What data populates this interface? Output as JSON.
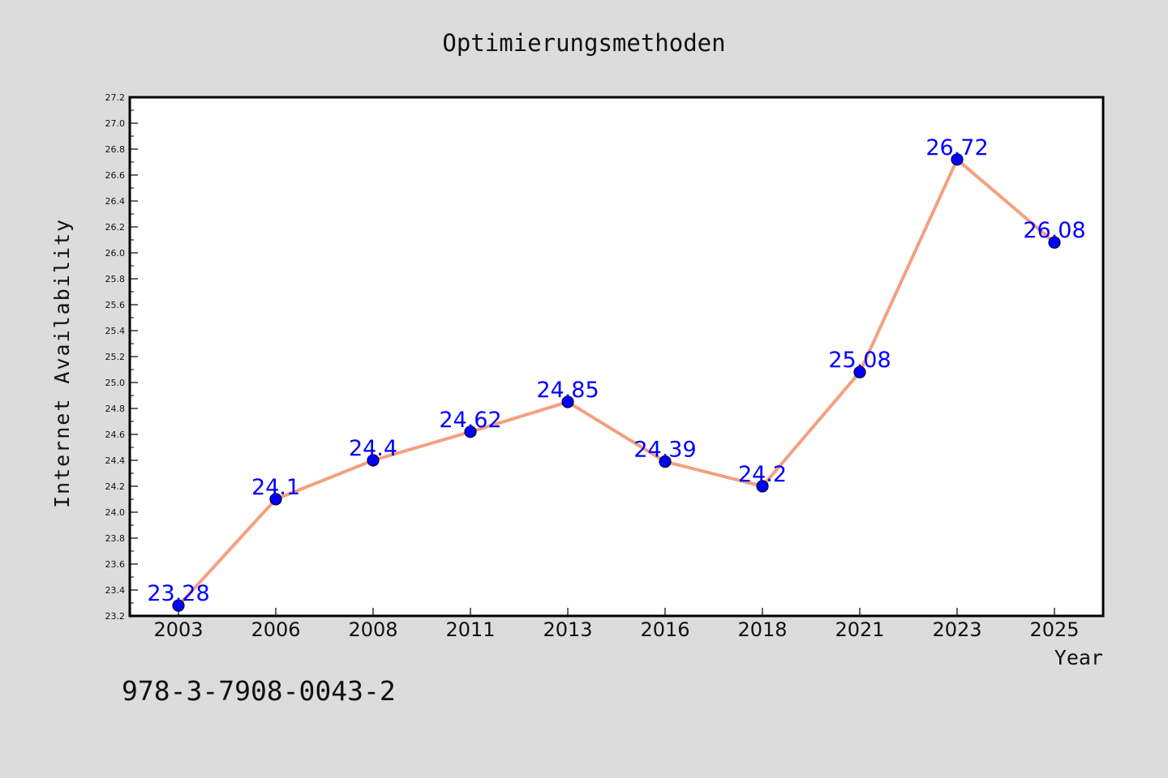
{
  "chart_data": {
    "type": "line",
    "title": "Optimierungsmethoden",
    "xlabel": "Year",
    "ylabel": "Internet Availability",
    "categories": [
      "2003",
      "2006",
      "2008",
      "2011",
      "2013",
      "2016",
      "2018",
      "2021",
      "2023",
      "2025"
    ],
    "series": [
      {
        "values": [
          23.28,
          24.1,
          24.4,
          24.62,
          24.85,
          24.39,
          24.2,
          25.08,
          26.72,
          26.08
        ],
        "data_labels": [
          "23.28",
          "24.1",
          "24.4",
          "24.62",
          "24.85",
          "24.39",
          "24.2",
          "25.08",
          "26.72",
          "26.08"
        ]
      }
    ],
    "ylim": [
      23.2,
      27.2
    ],
    "yticks": [
      "23.2",
      "23.4",
      "23.6",
      "23.8",
      "24.0",
      "24.2",
      "24.4",
      "24.6",
      "24.8",
      "25.0",
      "25.2",
      "25.4",
      "25.6",
      "25.8",
      "26.0",
      "26.2",
      "26.4",
      "26.6",
      "26.8",
      "27.0",
      "27.2"
    ],
    "grid": false,
    "legend": "none",
    "colors": {
      "line": "#f4a07e",
      "marker": "#0000ff",
      "marker_edge": "#000033",
      "data_label": "#0000ff",
      "figure_background": "#dcdcdc",
      "plot_background": "#ffffff"
    }
  },
  "footer": {
    "isbn": "978-3-7908-0043-2"
  }
}
